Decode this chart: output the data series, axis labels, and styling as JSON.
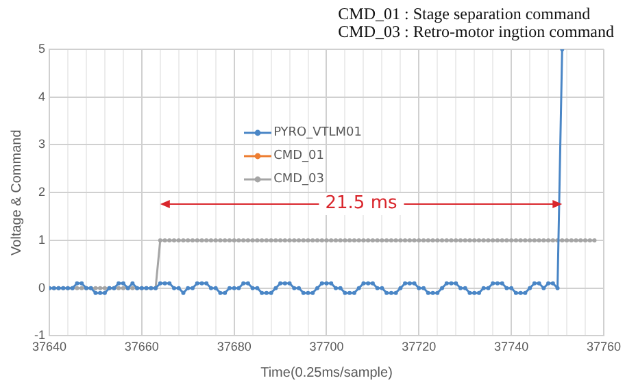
{
  "chart_data": {
    "type": "line",
    "xlabel": "Time(0.25ms/sample)",
    "ylabel": "Voltage & Command",
    "annotations": [
      "CMD_01 : Stage separation command",
      "CMD_03 : Retro-motor ingtion command",
      "21.5 ms"
    ],
    "xlim": [
      37640,
      37760
    ],
    "xticks": [
      37640,
      {
        "value": 37644,
        "label": null
      },
      {
        "value": 37648,
        "label": null
      },
      {
        "value": 37652,
        "label": null
      },
      {
        "value": 37656,
        "label": null
      },
      37660,
      {
        "value": 37664,
        "label": null
      },
      {
        "value": 37668,
        "label": null
      },
      {
        "value": 37672,
        "label": null
      },
      {
        "value": 37676,
        "label": null
      },
      37680,
      {
        "value": 37684,
        "label": null
      },
      {
        "value": 37688,
        "label": null
      },
      {
        "value": 37692,
        "label": null
      },
      {
        "value": 37696,
        "label": null
      },
      37700,
      {
        "value": 37704,
        "label": null
      },
      {
        "value": 37708,
        "label": null
      },
      {
        "value": 37712,
        "label": null
      },
      {
        "value": 37716,
        "label": null
      },
      37720,
      {
        "value": 37724,
        "label": null
      },
      {
        "value": 37728,
        "label": null
      },
      {
        "value": 37732,
        "label": null
      },
      {
        "value": 37736,
        "label": null
      },
      37740,
      {
        "value": 37744,
        "label": null
      },
      {
        "value": 37748,
        "label": null
      },
      {
        "value": 37752,
        "label": null
      },
      {
        "value": 37756,
        "label": null
      },
      37760
    ],
    "ylim": [
      -1,
      5
    ],
    "yticks": [
      -1,
      0,
      1,
      2,
      3,
      4,
      5
    ],
    "grid": true,
    "legend": "top left",
    "marker": "circle",
    "line_style": "solid",
    "series": [
      {
        "name": "PYRO_VTLM01",
        "color": "#4a86c6",
        "x": [
          37640,
          37641,
          37642,
          37643,
          37644,
          37645,
          37646,
          37647,
          37648,
          37649,
          37650,
          37651,
          37652,
          37653,
          37654,
          37655,
          37656,
          37657,
          37658,
          37659,
          37660,
          37661,
          37662,
          37663,
          37664,
          37665,
          37666,
          37667,
          37668,
          37669,
          37670,
          37671,
          37672,
          37673,
          37674,
          37675,
          37676,
          37677,
          37678,
          37679,
          37680,
          37681,
          37682,
          37683,
          37684,
          37685,
          37686,
          37687,
          37688,
          37689,
          37690,
          37691,
          37692,
          37693,
          37694,
          37695,
          37696,
          37697,
          37698,
          37699,
          37700,
          37701,
          37702,
          37703,
          37704,
          37705,
          37706,
          37707,
          37708,
          37709,
          37710,
          37711,
          37712,
          37713,
          37714,
          37715,
          37716,
          37717,
          37718,
          37719,
          37720,
          37721,
          37722,
          37723,
          37724,
          37725,
          37726,
          37727,
          37728,
          37729,
          37730,
          37731,
          37732,
          37733,
          37734,
          37735,
          37736,
          37737,
          37738,
          37739,
          37740,
          37741,
          37742,
          37743,
          37744,
          37745,
          37746,
          37747,
          37748,
          37749,
          37750,
          37751
        ],
        "values": [
          0,
          0,
          0,
          0,
          0,
          0,
          0.1,
          0.1,
          0,
          0,
          -0.1,
          -0.1,
          -0.1,
          0,
          0,
          0.1,
          0.1,
          0,
          0.1,
          0,
          0,
          0,
          0,
          0,
          0.1,
          0.1,
          0.1,
          0,
          0,
          -0.1,
          0,
          0,
          0.1,
          0.1,
          0.1,
          0,
          0,
          -0.1,
          -0.1,
          0,
          0,
          0,
          0.1,
          0.1,
          0,
          0,
          -0.1,
          -0.1,
          -0.1,
          0,
          0.1,
          0.1,
          0.1,
          0,
          0,
          -0.1,
          -0.1,
          -0.1,
          0,
          0.1,
          0.1,
          0.1,
          0,
          0,
          -0.1,
          -0.1,
          -0.1,
          0,
          0.1,
          0.1,
          0.1,
          0,
          0,
          -0.1,
          -0.1,
          -0.1,
          0,
          0.1,
          0.1,
          0.1,
          0,
          0,
          -0.1,
          -0.1,
          -0.1,
          0,
          0.1,
          0.1,
          0.1,
          0,
          0,
          -0.1,
          -0.1,
          -0.1,
          0,
          0,
          0.1,
          0.1,
          0.1,
          0,
          0,
          -0.1,
          -0.1,
          -0.1,
          0,
          0.1,
          0.1,
          0,
          0.1,
          0.1,
          0,
          5
        ]
      },
      {
        "name": "CMD_01",
        "color": "#ed7d31"
      },
      {
        "name": "CMD_03",
        "color": "#a5a5a5",
        "x": [
          37640,
          37641,
          37642,
          37643,
          37644,
          37645,
          37646,
          37647,
          37648,
          37649,
          37650,
          37651,
          37652,
          37653,
          37654,
          37655,
          37656,
          37657,
          37658,
          37659,
          37660,
          37661,
          37662,
          37663,
          37664,
          37665,
          37666,
          37667,
          37668,
          37669,
          37670,
          37671,
          37672,
          37673,
          37674,
          37675,
          37676,
          37677,
          37678,
          37679,
          37680,
          37681,
          37682,
          37683,
          37684,
          37685,
          37686,
          37687,
          37688,
          37689,
          37690,
          37691,
          37692,
          37693,
          37694,
          37695,
          37696,
          37697,
          37698,
          37699,
          37700,
          37701,
          37702,
          37703,
          37704,
          37705,
          37706,
          37707,
          37708,
          37709,
          37710,
          37711,
          37712,
          37713,
          37714,
          37715,
          37716,
          37717,
          37718,
          37719,
          37720,
          37721,
          37722,
          37723,
          37724,
          37725,
          37726,
          37727,
          37728,
          37729,
          37730,
          37731,
          37732,
          37733,
          37734,
          37735,
          37736,
          37737,
          37738,
          37739,
          37740,
          37741,
          37742,
          37743,
          37744,
          37745,
          37746,
          37747,
          37748,
          37749,
          37750,
          37751,
          37752,
          37753,
          37754,
          37755,
          37756,
          37757,
          37758
        ],
        "values": [
          0,
          0,
          0,
          0,
          0,
          0,
          0,
          0,
          0,
          0,
          0,
          0,
          0,
          0,
          0,
          0,
          0,
          0,
          0,
          0,
          0,
          0,
          0,
          0,
          1,
          1,
          1,
          1,
          1,
          1,
          1,
          1,
          1,
          1,
          1,
          1,
          1,
          1,
          1,
          1,
          1,
          1,
          1,
          1,
          1,
          1,
          1,
          1,
          1,
          1,
          1,
          1,
          1,
          1,
          1,
          1,
          1,
          1,
          1,
          1,
          1,
          1,
          1,
          1,
          1,
          1,
          1,
          1,
          1,
          1,
          1,
          1,
          1,
          1,
          1,
          1,
          1,
          1,
          1,
          1,
          1,
          1,
          1,
          1,
          1,
          1,
          1,
          1,
          1,
          1,
          1,
          1,
          1,
          1,
          1,
          1,
          1,
          1,
          1,
          1,
          1,
          1,
          1,
          1,
          1,
          1,
          1,
          1,
          1,
          1,
          1,
          1,
          1,
          1,
          1,
          1,
          1,
          1,
          1
        ]
      }
    ]
  }
}
